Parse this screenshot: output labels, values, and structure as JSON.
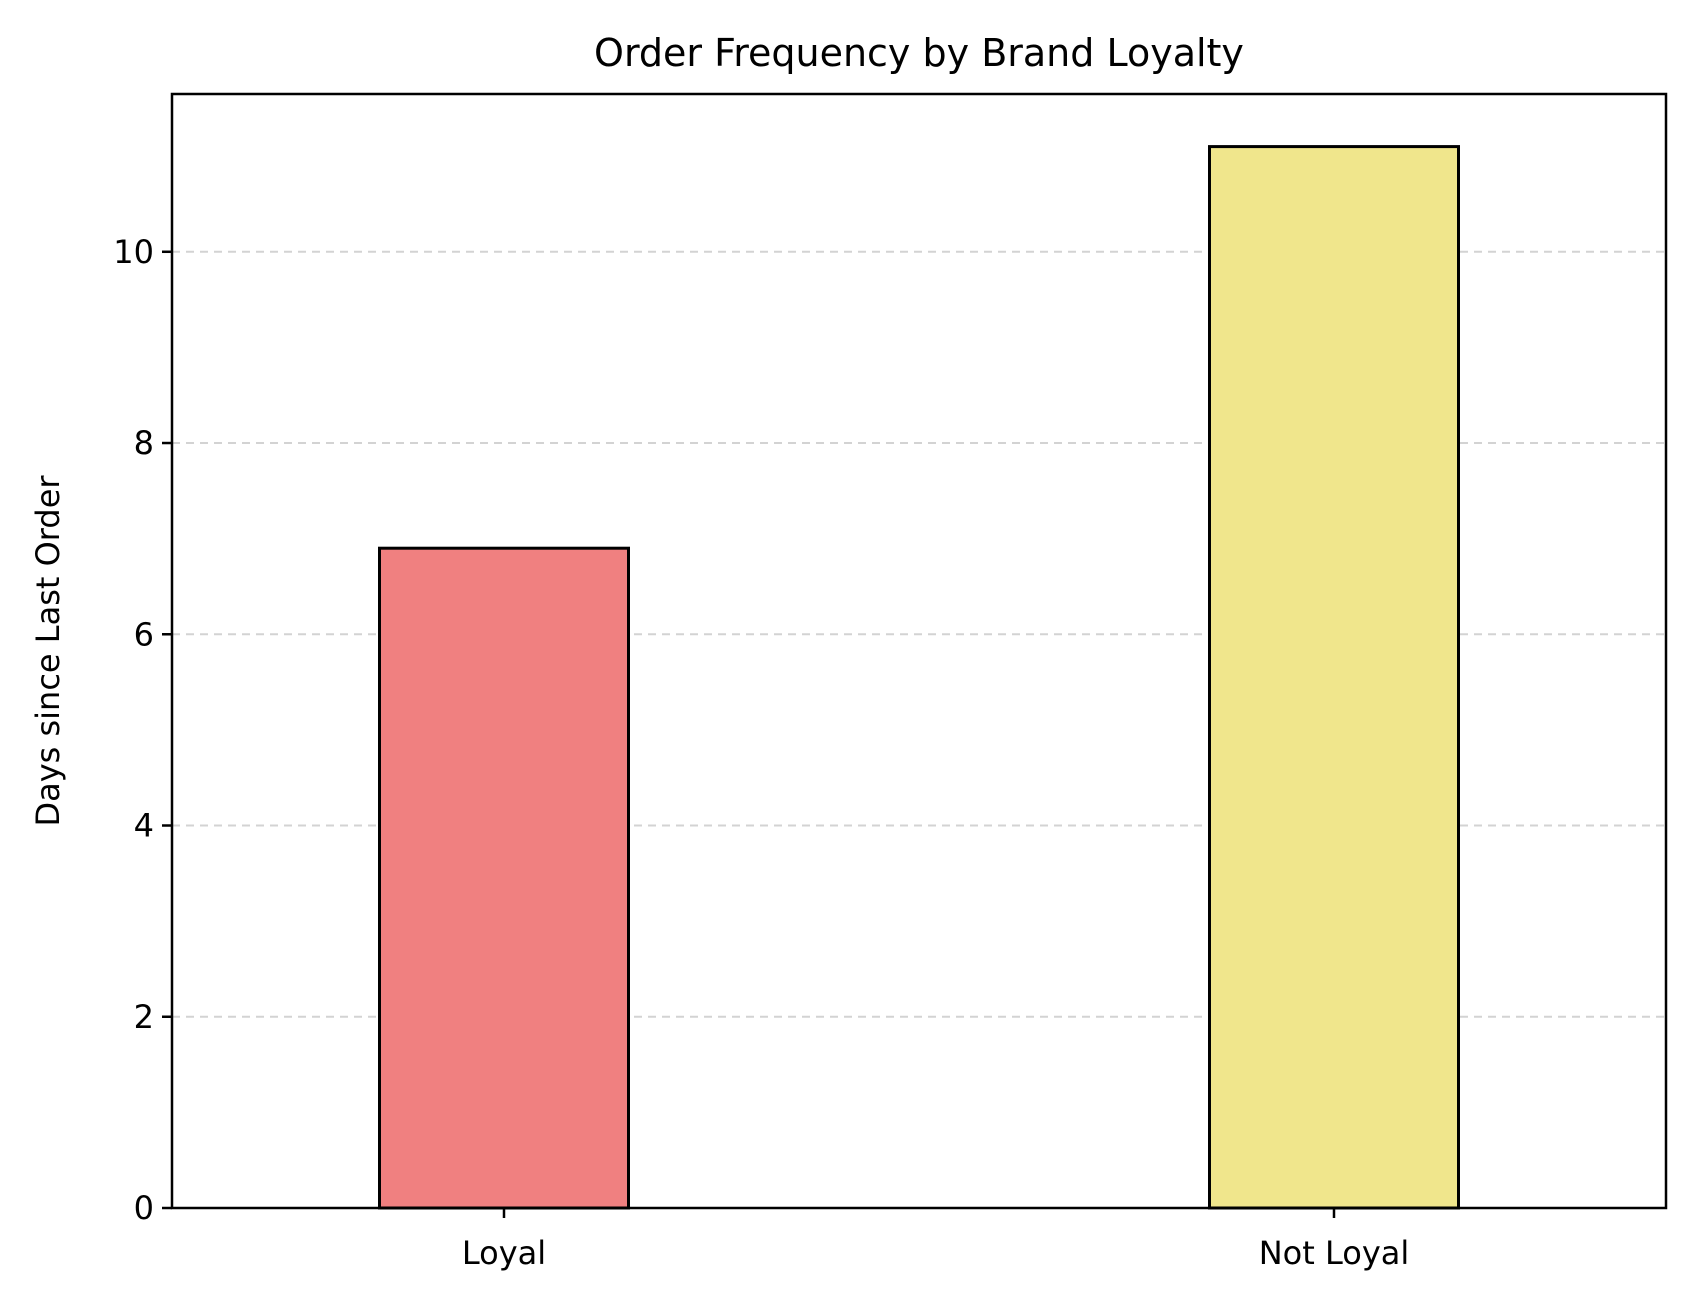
{
  "chart_data": {
    "type": "bar",
    "title": "Order Frequency by Brand Loyalty",
    "xlabel": "",
    "ylabel": "Days since Last Order",
    "categories": [
      "Loyal",
      "Not Loyal"
    ],
    "values": [
      6.9,
      11.1
    ],
    "colors": [
      "#f08080",
      "#f0e68c"
    ],
    "edge_color": "#000000",
    "ylim": [
      0,
      11.65
    ],
    "yticks": [
      0,
      2,
      4,
      6,
      8,
      10
    ],
    "grid": {
      "axis": "y",
      "style": "dashed",
      "color": "#d3d3d3"
    },
    "legend": "none"
  }
}
